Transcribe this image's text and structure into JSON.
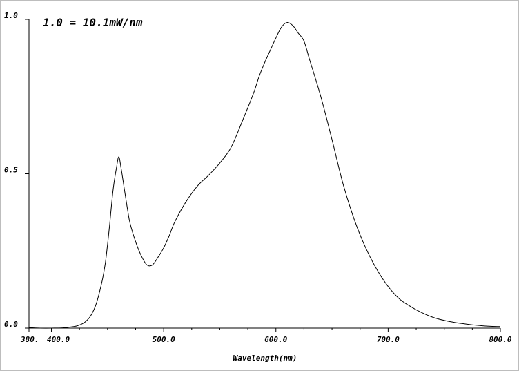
{
  "chart_data": {
    "type": "line",
    "title": "",
    "annotation": "1.0 = 10.1mW/nm",
    "xlabel": "Wavelength(nm)",
    "ylabel": "",
    "xlim": [
      380,
      800
    ],
    "ylim": [
      0,
      1.0
    ],
    "x_tick_labels": [
      "380.",
      "400.0",
      "500.0",
      "600.0",
      "700.0",
      "800.0"
    ],
    "x_tick_values": [
      380,
      400,
      500,
      600,
      700,
      800
    ],
    "y_tick_labels": [
      "0.0",
      "0.5",
      "1.0"
    ],
    "y_tick_values": [
      0,
      0.5,
      1.0
    ],
    "grid": false,
    "series": [
      {
        "name": "",
        "color": "#000000",
        "x": [
          380,
          390,
          400,
          410,
          420,
          425,
          430,
          435,
          440,
          445,
          448,
          450,
          452,
          455,
          458,
          460,
          462,
          465,
          468,
          470,
          475,
          480,
          485,
          490,
          495,
          500,
          505,
          510,
          520,
          530,
          540,
          550,
          560,
          570,
          580,
          585,
          590,
          595,
          600,
          605,
          610,
          615,
          620,
          625,
          630,
          640,
          650,
          660,
          670,
          680,
          690,
          700,
          710,
          720,
          730,
          740,
          750,
          760,
          770,
          780,
          790,
          800
        ],
        "y": [
          0.002,
          0.0,
          0.0,
          0.001,
          0.005,
          0.01,
          0.02,
          0.04,
          0.08,
          0.15,
          0.21,
          0.27,
          0.34,
          0.45,
          0.52,
          0.555,
          0.52,
          0.45,
          0.38,
          0.34,
          0.28,
          0.235,
          0.205,
          0.205,
          0.23,
          0.26,
          0.3,
          0.345,
          0.41,
          0.46,
          0.495,
          0.535,
          0.585,
          0.67,
          0.76,
          0.815,
          0.86,
          0.9,
          0.94,
          0.975,
          0.99,
          0.98,
          0.955,
          0.93,
          0.87,
          0.75,
          0.61,
          0.465,
          0.35,
          0.26,
          0.19,
          0.135,
          0.095,
          0.07,
          0.05,
          0.035,
          0.025,
          0.018,
          0.013,
          0.009,
          0.006,
          0.005
        ]
      }
    ]
  }
}
